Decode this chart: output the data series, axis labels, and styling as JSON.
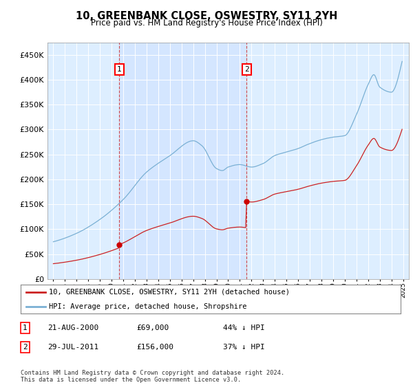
{
  "title": "10, GREENBANK CLOSE, OSWESTRY, SY11 2YH",
  "subtitle": "Price paid vs. HM Land Registry's House Price Index (HPI)",
  "plot_bg_color": "#ddeeff",
  "legend_label_red": "10, GREENBANK CLOSE, OSWESTRY, SY11 2YH (detached house)",
  "legend_label_blue": "HPI: Average price, detached house, Shropshire",
  "annotation1_date": "21-AUG-2000",
  "annotation1_price": "£69,000",
  "annotation1_hpi": "44% ↓ HPI",
  "annotation2_date": "29-JUL-2011",
  "annotation2_price": "£156,000",
  "annotation2_hpi": "37% ↓ HPI",
  "point1_x": 2000.646,
  "point1_y": 69000,
  "point2_x": 2011.579,
  "point2_y": 156000,
  "ylim": [
    0,
    475000
  ],
  "xlim": [
    1994.5,
    2025.5
  ],
  "yticks": [
    0,
    50000,
    100000,
    150000,
    200000,
    250000,
    300000,
    350000,
    400000,
    450000
  ],
  "copyright": "Contains HM Land Registry data © Crown copyright and database right 2024.\nThis data is licensed under the Open Government Licence v3.0."
}
